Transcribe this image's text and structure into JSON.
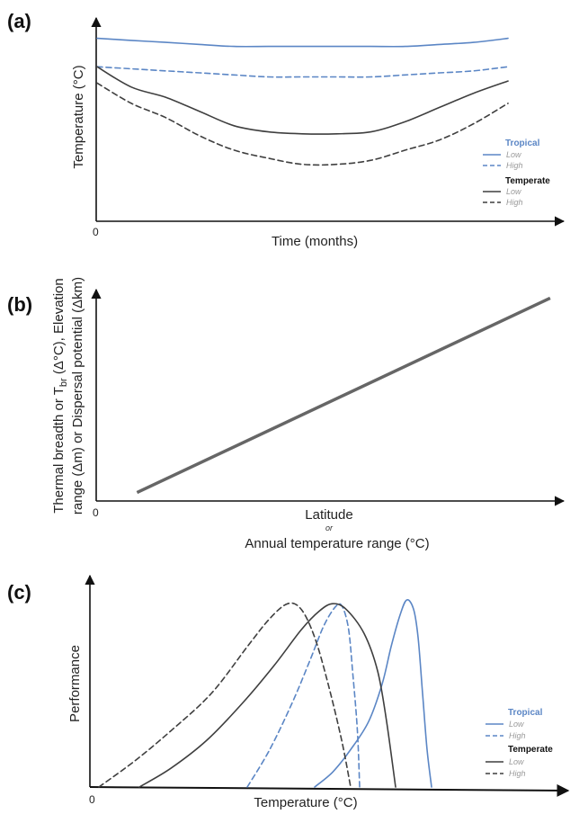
{
  "colors": {
    "tropical": "#5b86c5",
    "temperate": "#3f3f3f",
    "axis": "#111111",
    "latitude_line": "#666666"
  },
  "panels": {
    "a": {
      "label": "(a)",
      "xlabel": "Time (months)",
      "ylabel": "Temperature (°C)",
      "x_origin": "0"
    },
    "b": {
      "label": "(b)",
      "xlabel_line1": "Latitude",
      "xlabel_or": "or",
      "xlabel_line2": "Annual temperature range (°C)",
      "ylabel_line1_part1": "Thermal breadth or T",
      "ylabel_line1_sub": "br",
      "ylabel_line1_part2": " (Δ°C), Elevation",
      "ylabel_line2": "range (Δm) or Dispersal potential (Δkm)",
      "x_origin": "0"
    },
    "c": {
      "label": "(c)",
      "xlabel": "Temperature (°C)",
      "ylabel": "Performance",
      "x_origin": "0"
    }
  },
  "legend": {
    "tropical": "Tropical",
    "temperate": "Temperate",
    "low": "Low",
    "high": "High"
  },
  "chart_data": [
    {
      "panel": "a",
      "type": "line",
      "xlabel": "Time (months)",
      "ylabel": "Temperature (°C)",
      "x": [
        0,
        1,
        2,
        3,
        4,
        5,
        6,
        7,
        8,
        9,
        10,
        11,
        12
      ],
      "ylim": [
        0,
        100
      ],
      "series": [
        {
          "name": "Tropical Low",
          "style": "solid",
          "color": "tropical",
          "values": [
            90,
            89,
            88,
            87,
            86,
            86,
            86,
            86,
            86,
            86,
            87,
            88,
            90
          ]
        },
        {
          "name": "Tropical High",
          "style": "dashed",
          "color": "tropical",
          "values": [
            76,
            75,
            74,
            73,
            72,
            71,
            71,
            71,
            71,
            72,
            73,
            74,
            76
          ]
        },
        {
          "name": "Temperate Low",
          "style": "solid",
          "color": "temperate",
          "values": [
            76,
            66,
            61,
            54,
            47,
            44,
            43,
            43,
            44,
            49,
            56,
            63,
            69
          ]
        },
        {
          "name": "Temperate High",
          "style": "dashed",
          "color": "temperate",
          "values": [
            68,
            58,
            51,
            42,
            35,
            31,
            28,
            28,
            30,
            35,
            40,
            48,
            58
          ]
        }
      ]
    },
    {
      "panel": "b",
      "type": "line",
      "xlabel": "Latitude or Annual temperature range (°C)",
      "ylabel": "Thermal breadth or Tbr (Δ°C), Elevation range (Δm) or Dispersal potential (Δkm)",
      "x": [
        0.09,
        1.0
      ],
      "xlim": [
        0,
        1.03
      ],
      "ylim": [
        0,
        1
      ],
      "series": [
        {
          "name": "",
          "style": "solid",
          "color": "latitude_line",
          "values": [
            0.04,
            0.96
          ]
        }
      ]
    },
    {
      "panel": "c",
      "type": "line",
      "xlabel": "Temperature (°C)",
      "ylabel": "Performance",
      "xlim": [
        0,
        100
      ],
      "ylim": [
        0,
        1
      ],
      "series": [
        {
          "name": "Tropical Low",
          "style": "solid",
          "color": "tropical",
          "points": [
            [
              50,
              0
            ],
            [
              54,
              0.08
            ],
            [
              58,
              0.2
            ],
            [
              62,
              0.35
            ],
            [
              65,
              0.55
            ],
            [
              67,
              0.75
            ],
            [
              69,
              0.92
            ],
            [
              70.5,
              1.0
            ],
            [
              72,
              0.95
            ],
            [
              73,
              0.8
            ],
            [
              74,
              0.5
            ],
            [
              75,
              0.2
            ],
            [
              76,
              0
            ]
          ]
        },
        {
          "name": "Tropical High",
          "style": "dashed",
          "color": "tropical",
          "points": [
            [
              35,
              0
            ],
            [
              40,
              0.2
            ],
            [
              45,
              0.45
            ],
            [
              49,
              0.68
            ],
            [
              52,
              0.86
            ],
            [
              54.5,
              0.96
            ],
            [
              56,
              0.97
            ],
            [
              57.5,
              0.85
            ],
            [
              58.5,
              0.6
            ],
            [
              59.5,
              0.3
            ],
            [
              60,
              0
            ]
          ]
        },
        {
          "name": "Temperate Low",
          "style": "solid",
          "color": "temperate",
          "points": [
            [
              11,
              0
            ],
            [
              18,
              0.1
            ],
            [
              26,
              0.25
            ],
            [
              34,
              0.45
            ],
            [
              41,
              0.65
            ],
            [
              47,
              0.84
            ],
            [
              51,
              0.94
            ],
            [
              54,
              0.98
            ],
            [
              57,
              0.95
            ],
            [
              61,
              0.82
            ],
            [
              64,
              0.62
            ],
            [
              66,
              0.35
            ],
            [
              68,
              0
            ]
          ]
        },
        {
          "name": "Temperate High",
          "style": "dashed",
          "color": "temperate",
          "points": [
            [
              2,
              0
            ],
            [
              10,
              0.14
            ],
            [
              18,
              0.3
            ],
            [
              27,
              0.5
            ],
            [
              35,
              0.75
            ],
            [
              40,
              0.9
            ],
            [
              44,
              0.98
            ],
            [
              47,
              0.95
            ],
            [
              50,
              0.8
            ],
            [
              53,
              0.55
            ],
            [
              56,
              0.25
            ],
            [
              58,
              0
            ]
          ]
        }
      ]
    }
  ]
}
